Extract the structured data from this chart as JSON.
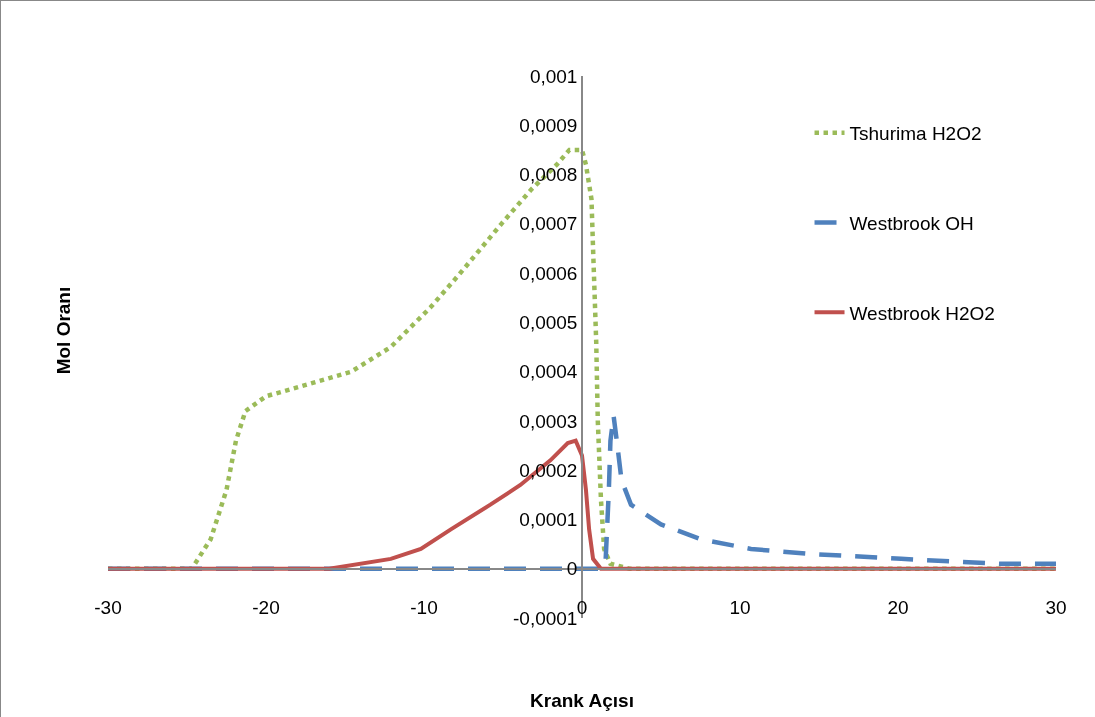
{
  "chart_data": {
    "type": "line",
    "xlabel": "Krank Açısı",
    "ylabel": "Mol Oranı",
    "xlim": [
      -30,
      30
    ],
    "xticks": [
      -30,
      -20,
      -10,
      0,
      10,
      20,
      30
    ],
    "ylim": [
      -0.0001,
      0.001
    ],
    "yticks": [
      {
        "value": -0.0001,
        "label": "-0,0001"
      },
      {
        "value": 0,
        "label": "0"
      },
      {
        "value": 0.0001,
        "label": "0,0001"
      },
      {
        "value": 0.0002,
        "label": "0,0002"
      },
      {
        "value": 0.0003,
        "label": "0,0003"
      },
      {
        "value": 0.0004,
        "label": "0,0004"
      },
      {
        "value": 0.0005,
        "label": "0,0005"
      },
      {
        "value": 0.0006,
        "label": "0,0006"
      },
      {
        "value": 0.0007,
        "label": "0,0007"
      },
      {
        "value": 0.0008,
        "label": "0,0008"
      },
      {
        "value": 0.0009,
        "label": "0,0009"
      },
      {
        "value": 0.001,
        "label": "0,001"
      }
    ],
    "grid": false,
    "legend": "right",
    "marker": "none",
    "series": [
      {
        "name": "Tshurima H2O2",
        "color": "#9bbb59",
        "line_style": "dotted",
        "x": [
          -30,
          -24.7,
          -23.5,
          -22.5,
          -21.9,
          -21.3,
          -20,
          -17.8,
          -14.6,
          -12.1,
          -9.6,
          -7.7,
          -5.1,
          -3.2,
          -1.6,
          -0.8,
          0,
          0.25,
          0.6,
          0.7,
          0.9,
          1.0,
          1.2,
          1.4,
          1.8,
          3,
          30
        ],
        "values": [
          0,
          0,
          6e-05,
          0.00016,
          0.00026,
          0.00032,
          0.00035,
          0.00037,
          0.0004,
          0.00045,
          0.00053,
          0.0006,
          0.0007,
          0.00077,
          0.00082,
          0.00085,
          0.00085,
          0.00082,
          0.00075,
          0.00065,
          0.00046,
          0.0003,
          0.00014,
          4e-05,
          1e-05,
          0,
          0
        ]
      },
      {
        "name": "Westbrook OH",
        "color": "#4f81bd",
        "line_style": "dashed",
        "x": [
          -30,
          0,
          1.2,
          1.5,
          1.7,
          1.8,
          2.0,
          2.2,
          2.5,
          3.1,
          5,
          7.5,
          10.7,
          14.5,
          20.2,
          26.5,
          30
        ],
        "values": [
          0,
          0,
          0,
          2e-05,
          0.00016,
          0.00026,
          0.00031,
          0.00026,
          0.00018,
          0.00013,
          9e-05,
          6e-05,
          4e-05,
          3e-05,
          2e-05,
          1e-05,
          1e-05
        ]
      },
      {
        "name": "Westbrook H2O2",
        "color": "#c0504d",
        "line_style": "solid",
        "x": [
          -30,
          -16,
          -12.1,
          -10.2,
          -8.3,
          -5.8,
          -3.9,
          -2.0,
          -0.9,
          -0.4,
          0,
          0.25,
          0.45,
          0.7,
          1.2,
          30
        ],
        "values": [
          0,
          0,
          2e-05,
          4e-05,
          8e-05,
          0.00013,
          0.00017,
          0.00022,
          0.000255,
          0.00026,
          0.00023,
          0.00016,
          8e-05,
          2e-05,
          0,
          0
        ]
      }
    ]
  }
}
